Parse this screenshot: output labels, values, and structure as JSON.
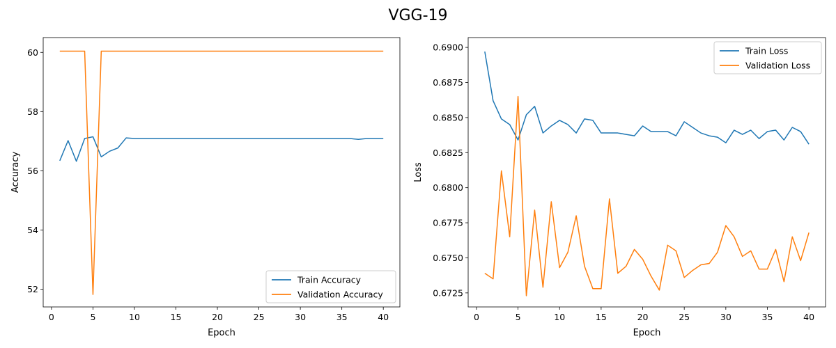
{
  "figure_title": "VGG-19",
  "chart_data": [
    {
      "type": "line",
      "xlabel": "Epoch",
      "ylabel": "Accuracy",
      "xlim": [
        -1,
        42
      ],
      "ylim": [
        51.4,
        60.5
      ],
      "xticks": [
        0,
        5,
        10,
        15,
        20,
        25,
        30,
        35,
        40
      ],
      "yticks": [
        52,
        54,
        56,
        58,
        60
      ],
      "legend_position": "lower-right",
      "x": [
        1,
        2,
        3,
        4,
        5,
        6,
        7,
        8,
        9,
        10,
        11,
        12,
        13,
        14,
        15,
        16,
        17,
        18,
        19,
        20,
        21,
        22,
        23,
        24,
        25,
        26,
        27,
        28,
        29,
        30,
        31,
        32,
        33,
        34,
        35,
        36,
        37,
        38,
        39,
        40
      ],
      "series": [
        {
          "name": "Train Accuracy",
          "color": "#1f77b4",
          "values": [
            56.34,
            57.02,
            56.32,
            57.09,
            57.15,
            56.47,
            56.66,
            56.77,
            57.11,
            57.09,
            57.09,
            57.09,
            57.09,
            57.09,
            57.09,
            57.09,
            57.09,
            57.09,
            57.09,
            57.09,
            57.09,
            57.09,
            57.09,
            57.09,
            57.09,
            57.09,
            57.09,
            57.09,
            57.09,
            57.09,
            57.09,
            57.09,
            57.09,
            57.09,
            57.09,
            57.09,
            57.06,
            57.09,
            57.09,
            57.09
          ]
        },
        {
          "name": "Validation Accuracy",
          "color": "#ff7f0e",
          "values": [
            60.04,
            60.04,
            60.04,
            60.04,
            51.82,
            60.04,
            60.04,
            60.04,
            60.04,
            60.04,
            60.04,
            60.04,
            60.04,
            60.04,
            60.04,
            60.04,
            60.04,
            60.04,
            60.04,
            60.04,
            60.04,
            60.04,
            60.04,
            60.04,
            60.04,
            60.04,
            60.04,
            60.04,
            60.04,
            60.04,
            60.04,
            60.04,
            60.04,
            60.04,
            60.04,
            60.04,
            60.04,
            60.04,
            60.04,
            60.04
          ]
        }
      ]
    },
    {
      "type": "line",
      "xlabel": "Epoch",
      "ylabel": "Loss",
      "xlim": [
        -1,
        42
      ],
      "ylim": [
        0.6715,
        0.6907
      ],
      "xticks": [
        0,
        5,
        10,
        15,
        20,
        25,
        30,
        35,
        40
      ],
      "yticks": [
        0.6725,
        0.675,
        0.6775,
        0.68,
        0.6825,
        0.685,
        0.6875,
        0.69
      ],
      "legend_position": "upper-right",
      "x": [
        1,
        2,
        3,
        4,
        5,
        6,
        7,
        8,
        9,
        10,
        11,
        12,
        13,
        14,
        15,
        16,
        17,
        18,
        19,
        20,
        21,
        22,
        23,
        24,
        25,
        26,
        27,
        28,
        29,
        30,
        31,
        32,
        33,
        34,
        35,
        36,
        37,
        38,
        39,
        40
      ],
      "series": [
        {
          "name": "Train Loss",
          "color": "#1f77b4",
          "values": [
            0.6897,
            0.6862,
            0.6849,
            0.6845,
            0.6834,
            0.6852,
            0.6858,
            0.6839,
            0.6844,
            0.6848,
            0.6845,
            0.6839,
            0.6849,
            0.6848,
            0.6839,
            0.6839,
            0.6839,
            0.6838,
            0.6837,
            0.6844,
            0.684,
            0.684,
            0.684,
            0.6837,
            0.6847,
            0.6843,
            0.6839,
            0.6837,
            0.6836,
            0.6832,
            0.6841,
            0.6838,
            0.6841,
            0.6835,
            0.684,
            0.6841,
            0.6834,
            0.6843,
            0.684,
            0.6831
          ]
        },
        {
          "name": "Validation Loss",
          "color": "#ff7f0e",
          "values": [
            0.6739,
            0.6735,
            0.6812,
            0.6765,
            0.6865,
            0.6723,
            0.6784,
            0.6729,
            0.679,
            0.6743,
            0.6754,
            0.678,
            0.6744,
            0.6728,
            0.6728,
            0.6792,
            0.6739,
            0.6744,
            0.6756,
            0.6749,
            0.6737,
            0.6727,
            0.6759,
            0.6755,
            0.6736,
            0.6741,
            0.6745,
            0.6746,
            0.6754,
            0.6773,
            0.6765,
            0.6751,
            0.6755,
            0.6742,
            0.6742,
            0.6756,
            0.6733,
            0.6765,
            0.6748,
            0.6768
          ]
        }
      ]
    }
  ]
}
